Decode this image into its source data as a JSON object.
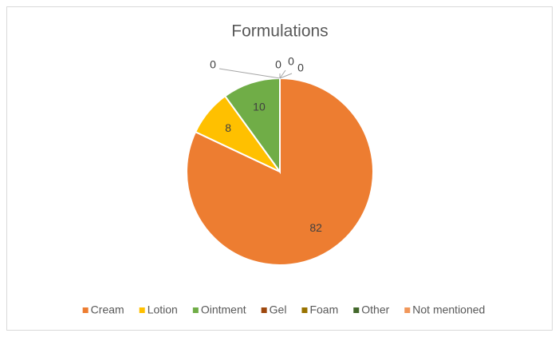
{
  "chart_data": {
    "type": "pie",
    "title": "Formulations",
    "categories": [
      "Cream",
      "Lotion",
      "Ointment",
      "Gel",
      "Foam",
      "Other",
      "Not mentioned"
    ],
    "values": [
      82,
      8,
      10,
      0,
      0,
      0,
      0
    ],
    "colors": [
      "#ED7D31",
      "#FFC000",
      "#70AD47",
      "#9E480E",
      "#997300",
      "#43682B",
      "#F1975A"
    ],
    "legend": "bottom"
  }
}
